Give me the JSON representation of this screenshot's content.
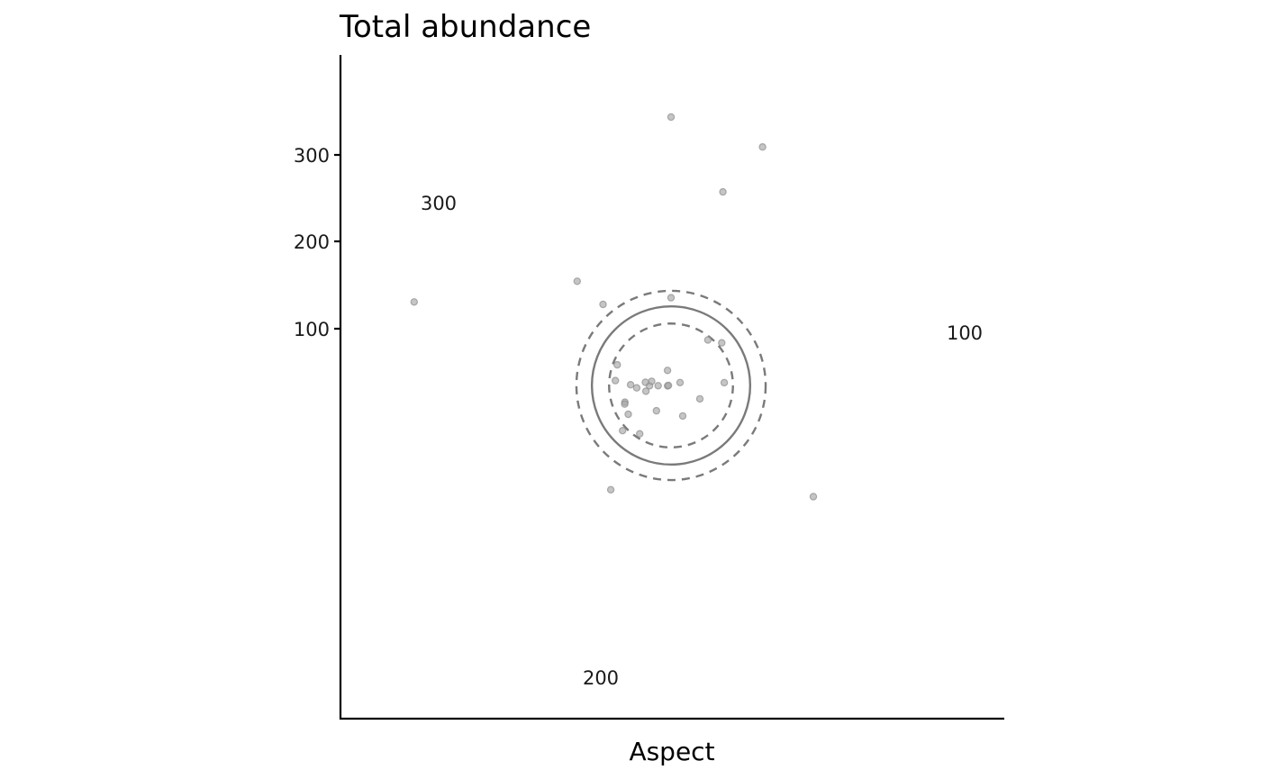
{
  "chart_data": {
    "type": "scatter",
    "title": "Total abundance",
    "xlabel": "Aspect",
    "ylabel": "",
    "yticks": [
      "100",
      "200",
      "300"
    ],
    "polar_labels": [
      "100",
      "200",
      "300"
    ],
    "center_circle": {
      "radius": 92,
      "ci_lower": 72,
      "ci_upper": 110
    },
    "points": [
      {
        "aspect": 0,
        "abundance": 312
      },
      {
        "aspect": 21,
        "abundance": 297
      },
      {
        "aspect": 15,
        "abundance": 233
      },
      {
        "aspect": 288,
        "abundance": 314
      },
      {
        "aspect": 318,
        "abundance": 163
      },
      {
        "aspect": 320,
        "abundance": 123
      },
      {
        "aspect": 0,
        "abundance": 102
      },
      {
        "aspect": 39,
        "abundance": 68
      },
      {
        "aspect": 50,
        "abundance": 77
      },
      {
        "aspect": 291,
        "abundance": 67
      },
      {
        "aspect": 275,
        "abundance": 65
      },
      {
        "aspect": 250,
        "abundance": 57
      },
      {
        "aspect": 248,
        "abundance": 58
      },
      {
        "aspect": 236,
        "abundance": 60
      },
      {
        "aspect": 227,
        "abundance": 77
      },
      {
        "aspect": 271,
        "abundance": 47
      },
      {
        "aspect": 266,
        "abundance": 40
      },
      {
        "aspect": 257,
        "abundance": 30
      },
      {
        "aspect": 269,
        "abundance": 25
      },
      {
        "aspect": 269,
        "abundance": 15
      },
      {
        "aspect": 282,
        "abundance": 23
      },
      {
        "aspect": 277,
        "abundance": 30
      },
      {
        "aspect": 347,
        "abundance": 18
      },
      {
        "aspect": 72,
        "abundance": 11
      },
      {
        "aspect": 263,
        "abundance": 4
      },
      {
        "aspect": 270,
        "abundance": 3
      },
      {
        "aspect": 115,
        "abundance": 37
      },
      {
        "aspect": 87,
        "abundance": 62
      },
      {
        "aspect": 210,
        "abundance": 34
      },
      {
        "aspect": 159,
        "abundance": 38
      },
      {
        "aspect": 213,
        "abundance": 67
      },
      {
        "aspect": 210,
        "abundance": 140
      },
      {
        "aspect": 128,
        "abundance": 210
      }
    ]
  }
}
